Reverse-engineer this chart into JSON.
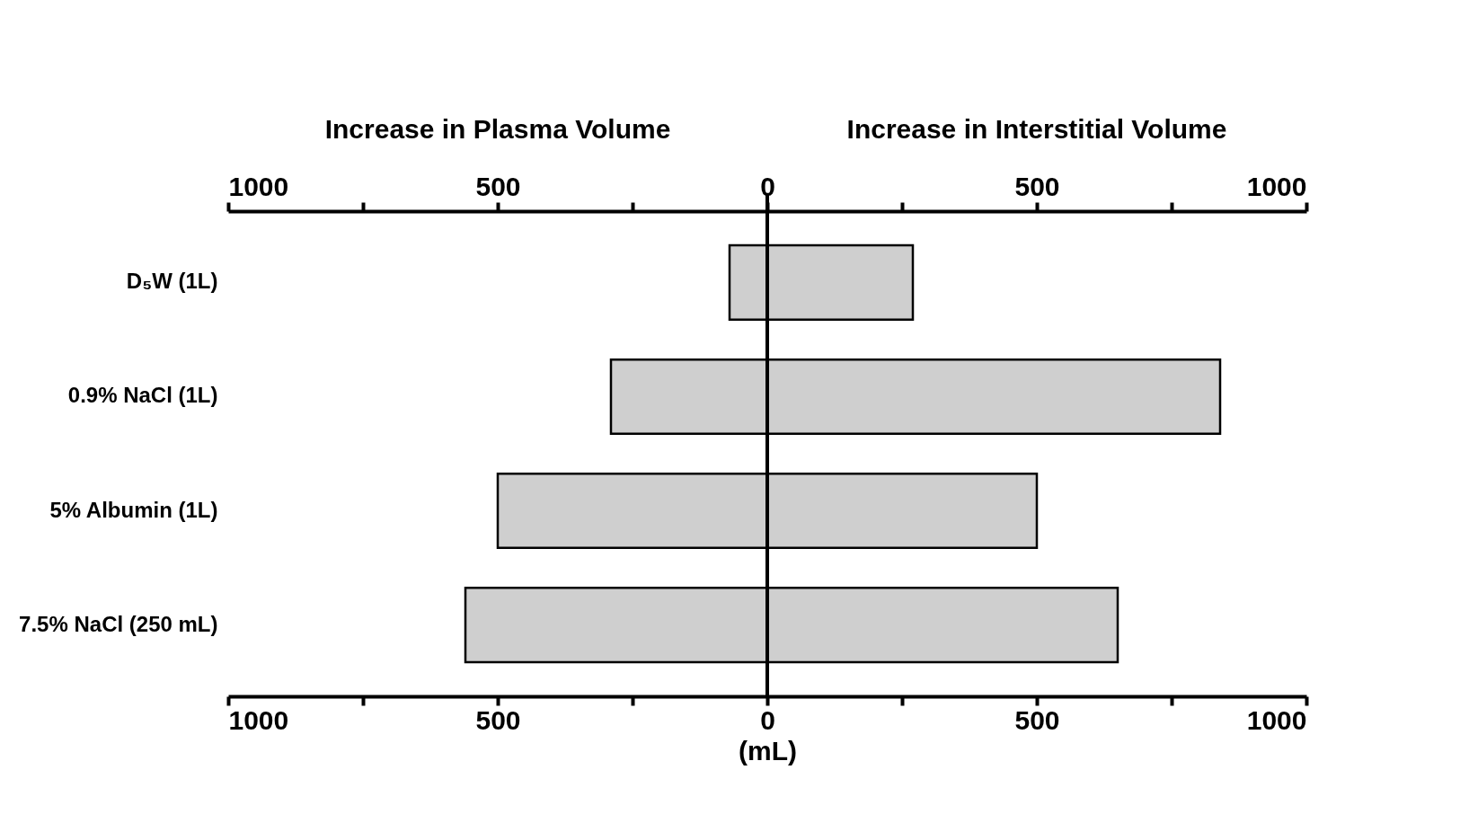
{
  "chart_data": {
    "type": "bar",
    "orientation": "horizontal",
    "stacked": true,
    "legend": false,
    "grid": false,
    "annotations": [
      "Increase in Plasma Volume",
      "Increase in Interstitial Volume"
    ],
    "categories": [
      "D₅W (1L)",
      "0.9% NaCl (1L)",
      "5% Albumin (1L)",
      "7.5% NaCl (250 mL)"
    ],
    "series": [
      {
        "color": "#cfcfcf",
        "values": [
          -70,
          -290,
          -500,
          -560
        ]
      },
      {
        "color": "#cfcfcf",
        "values": [
          270,
          840,
          500,
          650
        ]
      }
    ],
    "xlabel": "(mL)",
    "xlim": [
      -1000,
      1000
    ],
    "xticks": [
      {
        "value": -1000,
        "label": "1000"
      },
      {
        "value": -750,
        "label": null
      },
      {
        "value": -500,
        "label": "500"
      },
      {
        "value": -250,
        "label": null
      },
      0,
      {
        "value": 250,
        "label": null
      },
      500,
      {
        "value": 750,
        "label": null
      },
      1000
    ],
    "x2lim": [
      -1000,
      1000
    ],
    "x2ticks": [
      {
        "value": -1000,
        "label": "1000"
      },
      {
        "value": -750,
        "label": null
      },
      {
        "value": -500,
        "label": "500"
      },
      {
        "value": -250,
        "label": null
      },
      0,
      {
        "value": 250,
        "label": null
      },
      500,
      {
        "value": 750,
        "label": null
      },
      1000
    ],
    "ref_lines": [
      {
        "axis": "x",
        "value": 0,
        "color": "#000000"
      }
    ]
  }
}
